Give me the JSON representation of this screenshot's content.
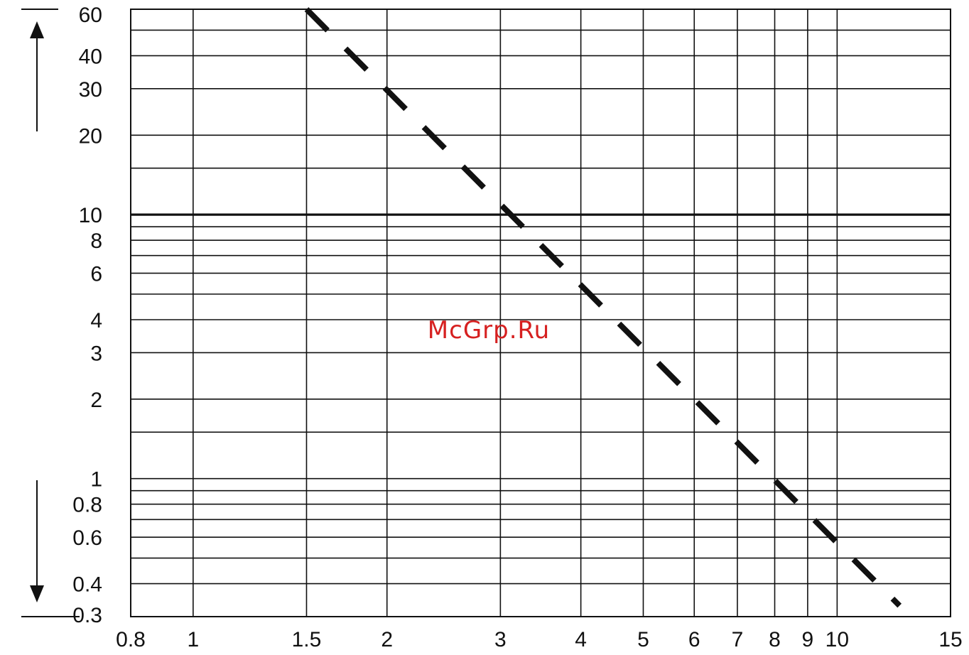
{
  "chart_data": {
    "type": "line",
    "x_scale": "log",
    "y_scale": "log",
    "xlim": [
      0.8,
      15
    ],
    "ylim": [
      0.3,
      60
    ],
    "grid": true,
    "x_gridlines": [
      0.8,
      1,
      1.5,
      2,
      3,
      4,
      5,
      6,
      7,
      8,
      9,
      10,
      15
    ],
    "y_gridlines": [
      0.3,
      0.4,
      0.5,
      0.6,
      0.7,
      0.8,
      0.9,
      1,
      1.5,
      2,
      3,
      4,
      5,
      6,
      7,
      8,
      9,
      10,
      15,
      20,
      30,
      40,
      50,
      60
    ],
    "x_tick_labels": [
      {
        "value": 0.8,
        "label": "0.8"
      },
      {
        "value": 1,
        "label": "1"
      },
      {
        "value": 1.5,
        "label": "1.5"
      },
      {
        "value": 2,
        "label": "2"
      },
      {
        "value": 3,
        "label": "3"
      },
      {
        "value": 4,
        "label": "4"
      },
      {
        "value": 5,
        "label": "5"
      },
      {
        "value": 6,
        "label": "6"
      },
      {
        "value": 7,
        "label": "7"
      },
      {
        "value": 8,
        "label": "8"
      },
      {
        "value": 9,
        "label": "9"
      },
      {
        "value": 10,
        "label": "10"
      },
      {
        "value": 15,
        "label": "15"
      }
    ],
    "y_tick_labels": [
      {
        "value": 60,
        "label": "60"
      },
      {
        "value": 40,
        "label": "40"
      },
      {
        "value": 30,
        "label": "30"
      },
      {
        "value": 20,
        "label": "20"
      },
      {
        "value": 10,
        "label": "10"
      },
      {
        "value": 8,
        "label": "8"
      },
      {
        "value": 6,
        "label": "6"
      },
      {
        "value": 4,
        "label": "4"
      },
      {
        "value": 3,
        "label": "3"
      },
      {
        "value": 2,
        "label": "2"
      },
      {
        "value": 1,
        "label": "1"
      },
      {
        "value": 0.8,
        "label": "0.8"
      },
      {
        "value": 0.6,
        "label": "0.6"
      },
      {
        "value": 0.4,
        "label": "0.4"
      },
      {
        "value": 0.3,
        "label": "0.3"
      }
    ],
    "series": [
      {
        "style": "dashed",
        "color": "#111111",
        "x": [
          1.5,
          12.5
        ],
        "y": [
          60,
          0.33
        ]
      }
    ],
    "title": "",
    "xlabel": "",
    "ylabel": ""
  },
  "watermark": {
    "text": "McGrp.Ru",
    "color": "#d62020"
  },
  "colors": {
    "grid": "#111111",
    "line": "#111111",
    "text": "#111111"
  }
}
